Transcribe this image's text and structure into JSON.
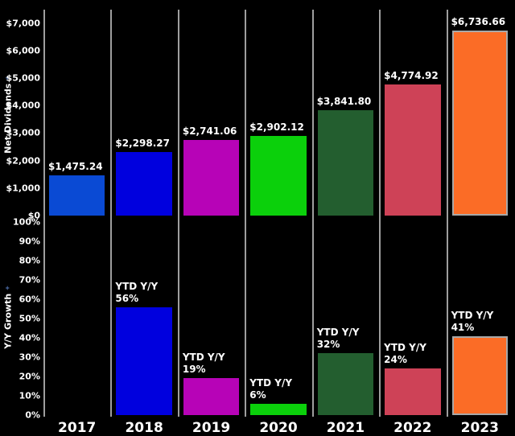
{
  "chart_data": [
    {
      "type": "bar",
      "title": "Net Dividends",
      "ylabel": "Net Dividends",
      "categories": [
        "2017",
        "2018",
        "2019",
        "2020",
        "2021",
        "2022",
        "2023"
      ],
      "values": [
        1475.24,
        2298.27,
        2741.06,
        2902.12,
        3841.8,
        4774.92,
        6736.66
      ],
      "bar_labels": [
        "$1,475.24",
        "$2,298.27",
        "$2,741.06",
        "$2,902.12",
        "$3,841.80",
        "$4,774.92",
        "$6,736.66"
      ],
      "ylim": [
        0,
        7000
      ],
      "ytick_labels": [
        "$7,000",
        "$6,000",
        "$5,000",
        "$4,000",
        "$3,000",
        "$2,000",
        "$1,000",
        "$0"
      ],
      "ytick_values": [
        7000,
        6000,
        5000,
        4000,
        3000,
        2000,
        1000,
        0
      ],
      "grid": "off",
      "legend": "none"
    },
    {
      "type": "bar",
      "title": "Y/Y Growth",
      "ylabel": "Y/Y Growth",
      "categories": [
        "2017",
        "2018",
        "2019",
        "2020",
        "2021",
        "2022",
        "2023"
      ],
      "values": [
        null,
        56,
        19,
        6,
        32,
        24,
        41
      ],
      "bar_labels": [
        "",
        "YTD Y/Y\n56%",
        "YTD Y/Y\n19%",
        "YTD Y/Y\n6%",
        "YTD Y/Y\n32%",
        "YTD Y/Y\n24%",
        "YTD Y/Y\n41%"
      ],
      "ylim": [
        0,
        100
      ],
      "ytick_labels": [
        "100%",
        "90%",
        "80%",
        "70%",
        "60%",
        "50%",
        "40%",
        "30%",
        "20%",
        "10%",
        "0%"
      ],
      "ytick_values": [
        100,
        90,
        80,
        70,
        60,
        50,
        40,
        30,
        20,
        10,
        0
      ],
      "grid": "off",
      "legend": "none"
    }
  ],
  "colors": {
    "background": "#000000",
    "text": "#ffffff",
    "separator_line": "#9e9e9e",
    "highlight_border": "#a8a8a8",
    "axis_icon": "#3f5a8a",
    "bars": [
      "#0a4ad4",
      "#0000de",
      "#b703b7",
      "#0bd00b",
      "#235e2f",
      "#ce4257",
      "#fb6c26"
    ]
  },
  "highlighted_category": "2023",
  "axis": {
    "top_title": "Net Dividends",
    "bottom_title": "Y/Y Growth",
    "icon_glyph": "✦"
  }
}
